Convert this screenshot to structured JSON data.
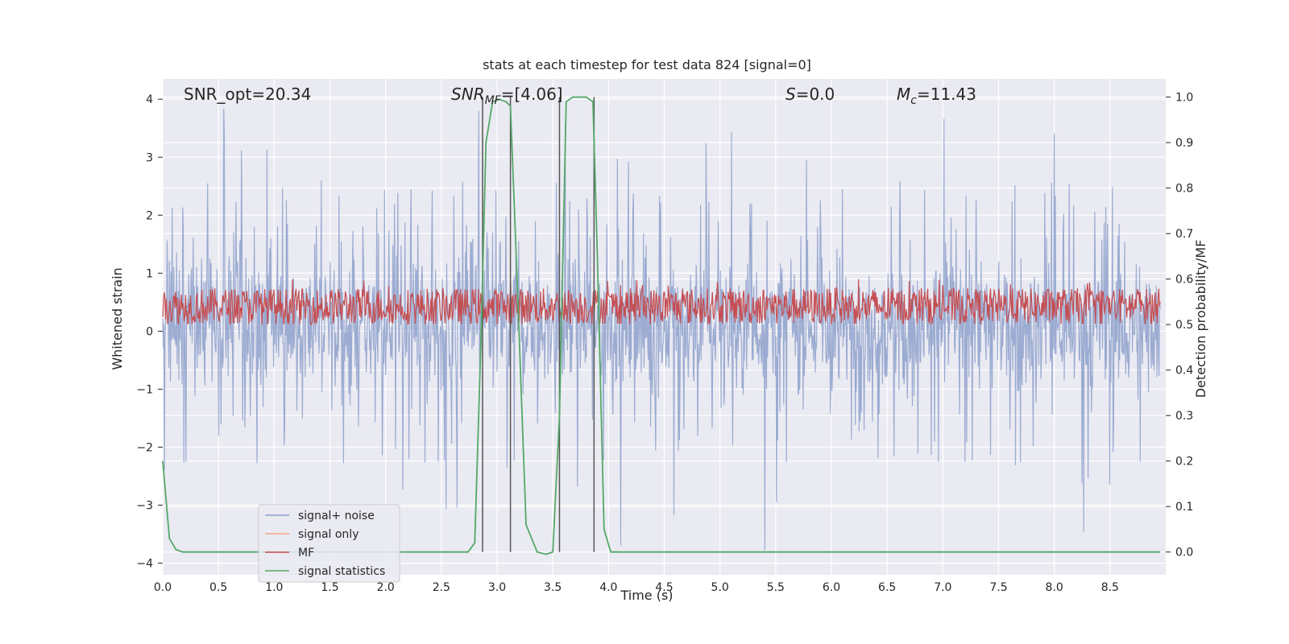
{
  "chart_data": {
    "type": "line",
    "title": "stats at each timestep for test data 824 [signal=0]",
    "xlabel": "Time (s)",
    "ylabel": "Whitened strain",
    "y2label": "Detection probability/MF",
    "xlim": [
      0,
      9.0
    ],
    "ylim": [
      -4.2,
      4.35
    ],
    "y2lim": [
      -0.05,
      1.04
    ],
    "x_ticks": [
      "0.0",
      "0.5",
      "1.0",
      "1.5",
      "2.0",
      "2.5",
      "3.0",
      "3.5",
      "4.0",
      "4.5",
      "5.0",
      "5.5",
      "6.0",
      "6.5",
      "7.0",
      "7.5",
      "8.0",
      "8.5"
    ],
    "x_tick_values": [
      0,
      0.5,
      1,
      1.5,
      2,
      2.5,
      3,
      3.5,
      4,
      4.5,
      5,
      5.5,
      6,
      6.5,
      7,
      7.5,
      8,
      8.5
    ],
    "y_ticks": [
      "−4",
      "−3",
      "−2",
      "−1",
      "0",
      "1",
      "2",
      "3",
      "4"
    ],
    "y_tick_values": [
      -4,
      -3,
      -2,
      -1,
      0,
      1,
      2,
      3,
      4
    ],
    "y2_ticks": [
      "0.0",
      "0.1",
      "0.2",
      "0.3",
      "0.4",
      "0.5",
      "0.6",
      "0.7",
      "0.8",
      "0.9",
      "1.0"
    ],
    "y2_tick_values": [
      0,
      0.1,
      0.2,
      0.3,
      0.4,
      0.5,
      0.6,
      0.7,
      0.8,
      0.9,
      1.0
    ],
    "grid": true,
    "legend_position": "lower-left",
    "series": [
      {
        "name": "signal+ noise",
        "color": "#8da0cb",
        "axis": "left",
        "style": "noise",
        "center": 0.1,
        "typical_amplitude": 1.6,
        "peak_amplitude": 4.0
      },
      {
        "name": "signal only",
        "color": "#f4a582",
        "axis": "left",
        "style": "empty"
      },
      {
        "name": "MF",
        "color": "#c44e52",
        "axis": "right",
        "style": "noise",
        "baseline": 0.5,
        "typical_max": 0.58,
        "peak": 0.6
      },
      {
        "name": "signal statistics",
        "color": "#55a868",
        "axis": "right",
        "style": "line",
        "x": [
          0.0,
          0.06,
          0.12,
          0.18,
          0.4,
          1.0,
          2.0,
          2.74,
          2.8,
          2.86,
          2.9,
          2.96,
          3.02,
          3.08,
          3.12,
          3.18,
          3.26,
          3.36,
          3.44,
          3.5,
          3.56,
          3.62,
          3.68,
          3.74,
          3.8,
          3.86,
          3.9,
          3.96,
          4.02,
          4.08,
          4.2,
          5.0,
          6.0,
          7.0,
          8.0,
          8.95
        ],
        "y": [
          0.2,
          0.03,
          0.005,
          0.0,
          0.0,
          0.0,
          0.0,
          0.0,
          0.02,
          0.5,
          0.9,
          0.99,
          0.995,
          0.99,
          0.98,
          0.6,
          0.06,
          0.0,
          -0.005,
          0.0,
          0.3,
          0.99,
          1.0,
          1.0,
          1.0,
          0.99,
          0.65,
          0.05,
          0.0,
          0.0,
          0.0,
          0.0,
          0.0,
          0.0,
          0.0,
          0.0
        ]
      }
    ],
    "vertical_lines_x": [
      2.87,
      3.12,
      3.56,
      3.87
    ],
    "annotations": [
      {
        "text": "SNR_opt=20.34"
      },
      {
        "text_prefix": "SNR",
        "text_sub": "MF",
        "text_suffix": "=[4.06]"
      },
      {
        "text_prefix": "S",
        "text_suffix": "=0.0"
      },
      {
        "text_prefix": "M",
        "text_sub": "c",
        "text_suffix": "=11.43"
      }
    ]
  }
}
